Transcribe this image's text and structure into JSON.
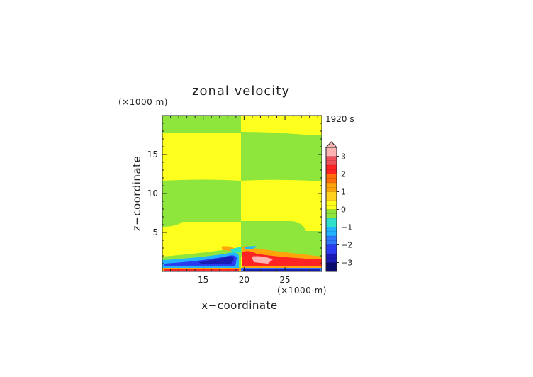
{
  "chart_data": {
    "type": "heatmap",
    "title": "zonal velocity",
    "xlabel": "x−coordinate",
    "ylabel": "z−coordinate",
    "x_unit": "(×1000 m)",
    "y_unit": "(×1000 m)",
    "time_label": "1920 s",
    "xlim": [
      10,
      29.5
    ],
    "ylim": [
      0,
      20
    ],
    "x_ticks": [
      "15",
      "20",
      "25"
    ],
    "x_tick_values": [
      15,
      20,
      25
    ],
    "y_ticks": [
      "5",
      "10",
      "15"
    ],
    "y_tick_values": [
      5,
      10,
      15
    ],
    "colorbar": {
      "ticks": [
        "3",
        "2",
        "1",
        "0",
        "−1",
        "−2",
        "−3"
      ],
      "tick_values": [
        3,
        2,
        1,
        0,
        -1,
        -2,
        -3
      ],
      "range": [
        -3.5,
        3.5
      ],
      "levels": [
        {
          "from": -3.5,
          "to": -3.0,
          "color": "#0b0b6e"
        },
        {
          "from": -3.0,
          "to": -2.5,
          "color": "#1a1ab4"
        },
        {
          "from": -2.5,
          "to": -2.0,
          "color": "#2b3cf0"
        },
        {
          "from": -2.0,
          "to": -1.5,
          "color": "#2f79ff"
        },
        {
          "from": -1.5,
          "to": -1.0,
          "color": "#22b4ff"
        },
        {
          "from": -1.0,
          "to": -0.5,
          "color": "#2fe0c8"
        },
        {
          "from": -0.5,
          "to": 0.0,
          "color": "#8ee63c"
        },
        {
          "from": 0.0,
          "to": 0.5,
          "color": "#ffff1e"
        },
        {
          "from": 0.5,
          "to": 1.0,
          "color": "#ffd21e"
        },
        {
          "from": 1.0,
          "to": 1.5,
          "color": "#ffa50a"
        },
        {
          "from": 1.5,
          "to": 2.0,
          "color": "#ff6e0a"
        },
        {
          "from": 2.0,
          "to": 2.5,
          "color": "#ff2323"
        },
        {
          "from": 2.5,
          "to": 3.0,
          "color": "#f0505a"
        },
        {
          "from": 3.0,
          "to": 3.5,
          "color": "#ffb4b4"
        }
      ]
    }
  }
}
